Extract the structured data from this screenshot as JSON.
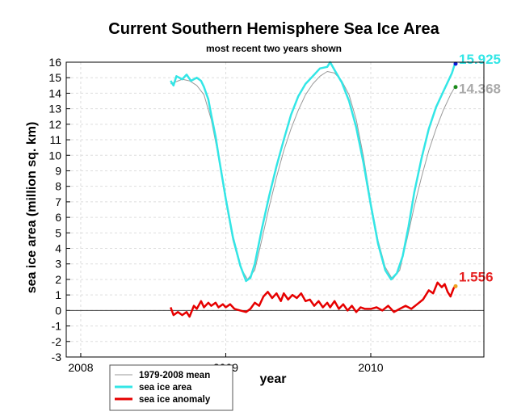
{
  "chart_data": {
    "type": "line",
    "title": "Current Southern Hemisphere Sea Ice Area",
    "subtitle": "most recent two years shown",
    "xlabel": "year",
    "ylabel": "sea ice area (million sq. km)",
    "xlim": [
      2007.9,
      2010.78
    ],
    "ylim": [
      -3,
      16
    ],
    "xticks": [
      2008,
      2009,
      2010
    ],
    "yticks": [
      -3,
      -2,
      -1,
      0,
      1,
      2,
      3,
      4,
      5,
      6,
      7,
      8,
      9,
      10,
      11,
      12,
      13,
      14,
      15,
      16
    ],
    "grid": true,
    "legend_position": "bottom-left",
    "series": [
      {
        "name": "1979-2008 mean",
        "color": "#999999",
        "points": [
          [
            2008.62,
            14.6
          ],
          [
            2008.7,
            14.9
          ],
          [
            2008.75,
            14.8
          ],
          [
            2008.8,
            14.5
          ],
          [
            2008.85,
            13.9
          ],
          [
            2008.9,
            12.3
          ],
          [
            2008.95,
            9.9
          ],
          [
            2009.0,
            7.0
          ],
          [
            2009.05,
            4.5
          ],
          [
            2009.1,
            2.8
          ],
          [
            2009.15,
            2.0
          ],
          [
            2009.2,
            2.6
          ],
          [
            2009.25,
            4.6
          ],
          [
            2009.3,
            6.7
          ],
          [
            2009.35,
            8.6
          ],
          [
            2009.4,
            10.3
          ],
          [
            2009.45,
            11.7
          ],
          [
            2009.5,
            12.9
          ],
          [
            2009.55,
            13.9
          ],
          [
            2009.6,
            14.6
          ],
          [
            2009.65,
            15.1
          ],
          [
            2009.7,
            15.4
          ],
          [
            2009.75,
            15.3
          ],
          [
            2009.8,
            14.8
          ],
          [
            2009.85,
            13.9
          ],
          [
            2009.9,
            12.3
          ],
          [
            2009.95,
            9.9
          ],
          [
            2010.0,
            7.0
          ],
          [
            2010.05,
            4.5
          ],
          [
            2010.1,
            2.8
          ],
          [
            2010.15,
            2.0
          ],
          [
            2010.2,
            2.6
          ],
          [
            2010.25,
            4.6
          ],
          [
            2010.3,
            6.7
          ],
          [
            2010.35,
            8.6
          ],
          [
            2010.4,
            10.3
          ],
          [
            2010.45,
            11.7
          ],
          [
            2010.5,
            12.9
          ],
          [
            2010.55,
            13.9
          ],
          [
            2010.58,
            14.4
          ]
        ]
      },
      {
        "name": "sea ice area",
        "color": "#33e6e6",
        "points": [
          [
            2008.62,
            14.8
          ],
          [
            2008.64,
            14.5
          ],
          [
            2008.66,
            15.1
          ],
          [
            2008.7,
            14.9
          ],
          [
            2008.73,
            15.2
          ],
          [
            2008.76,
            14.8
          ],
          [
            2008.8,
            15.0
          ],
          [
            2008.83,
            14.8
          ],
          [
            2008.85,
            14.4
          ],
          [
            2008.88,
            13.6
          ],
          [
            2008.9,
            12.6
          ],
          [
            2008.93,
            11.2
          ],
          [
            2008.95,
            10.0
          ],
          [
            2009.0,
            7.2
          ],
          [
            2009.05,
            4.7
          ],
          [
            2009.1,
            2.9
          ],
          [
            2009.14,
            1.9
          ],
          [
            2009.17,
            2.1
          ],
          [
            2009.2,
            3.0
          ],
          [
            2009.25,
            5.3
          ],
          [
            2009.3,
            7.4
          ],
          [
            2009.35,
            9.3
          ],
          [
            2009.4,
            11.0
          ],
          [
            2009.45,
            12.6
          ],
          [
            2009.5,
            13.8
          ],
          [
            2009.55,
            14.6
          ],
          [
            2009.6,
            15.1
          ],
          [
            2009.65,
            15.6
          ],
          [
            2009.7,
            15.7
          ],
          [
            2009.72,
            16.0
          ],
          [
            2009.75,
            15.5
          ],
          [
            2009.8,
            14.7
          ],
          [
            2009.85,
            13.5
          ],
          [
            2009.9,
            11.8
          ],
          [
            2009.95,
            9.5
          ],
          [
            2010.0,
            6.8
          ],
          [
            2010.05,
            4.3
          ],
          [
            2010.1,
            2.6
          ],
          [
            2010.14,
            2.0
          ],
          [
            2010.18,
            2.4
          ],
          [
            2010.22,
            3.5
          ],
          [
            2010.26,
            5.4
          ],
          [
            2010.3,
            7.6
          ],
          [
            2010.35,
            9.8
          ],
          [
            2010.4,
            11.7
          ],
          [
            2010.45,
            13.1
          ],
          [
            2010.5,
            14.1
          ],
          [
            2010.54,
            14.9
          ],
          [
            2010.56,
            15.3
          ],
          [
            2010.58,
            15.9
          ]
        ]
      },
      {
        "name": "sea ice anomaly",
        "color": "#e60000",
        "points": [
          [
            2008.62,
            0.2
          ],
          [
            2008.64,
            -0.3
          ],
          [
            2008.67,
            -0.1
          ],
          [
            2008.7,
            -0.3
          ],
          [
            2008.73,
            -0.1
          ],
          [
            2008.75,
            -0.4
          ],
          [
            2008.78,
            0.3
          ],
          [
            2008.8,
            0.1
          ],
          [
            2008.83,
            0.6
          ],
          [
            2008.85,
            0.2
          ],
          [
            2008.88,
            0.5
          ],
          [
            2008.9,
            0.3
          ],
          [
            2008.93,
            0.5
          ],
          [
            2008.95,
            0.2
          ],
          [
            2008.98,
            0.4
          ],
          [
            2009.0,
            0.2
          ],
          [
            2009.03,
            0.4
          ],
          [
            2009.06,
            0.1
          ],
          [
            2009.1,
            0.0
          ],
          [
            2009.14,
            -0.1
          ],
          [
            2009.17,
            0.1
          ],
          [
            2009.2,
            0.5
          ],
          [
            2009.23,
            0.3
          ],
          [
            2009.26,
            0.9
          ],
          [
            2009.29,
            1.2
          ],
          [
            2009.32,
            0.8
          ],
          [
            2009.35,
            1.1
          ],
          [
            2009.38,
            0.6
          ],
          [
            2009.4,
            1.1
          ],
          [
            2009.43,
            0.7
          ],
          [
            2009.46,
            1.0
          ],
          [
            2009.49,
            0.8
          ],
          [
            2009.52,
            1.1
          ],
          [
            2009.55,
            0.6
          ],
          [
            2009.58,
            0.7
          ],
          [
            2009.61,
            0.3
          ],
          [
            2009.64,
            0.6
          ],
          [
            2009.67,
            0.2
          ],
          [
            2009.7,
            0.5
          ],
          [
            2009.72,
            0.2
          ],
          [
            2009.75,
            0.6
          ],
          [
            2009.78,
            0.1
          ],
          [
            2009.81,
            0.4
          ],
          [
            2009.84,
            0.0
          ],
          [
            2009.87,
            0.3
          ],
          [
            2009.9,
            -0.1
          ],
          [
            2009.93,
            0.2
          ],
          [
            2009.96,
            0.1
          ],
          [
            2010.0,
            0.1
          ],
          [
            2010.04,
            0.2
          ],
          [
            2010.08,
            0.0
          ],
          [
            2010.12,
            0.3
          ],
          [
            2010.16,
            -0.1
          ],
          [
            2010.2,
            0.1
          ],
          [
            2010.24,
            0.3
          ],
          [
            2010.28,
            0.1
          ],
          [
            2010.32,
            0.4
          ],
          [
            2010.36,
            0.7
          ],
          [
            2010.4,
            1.3
          ],
          [
            2010.43,
            1.1
          ],
          [
            2010.46,
            1.8
          ],
          [
            2010.49,
            1.5
          ],
          [
            2010.51,
            1.7
          ],
          [
            2010.53,
            1.2
          ],
          [
            2010.55,
            0.9
          ],
          [
            2010.57,
            1.4
          ],
          [
            2010.58,
            1.56
          ]
        ]
      }
    ],
    "end_markers": [
      {
        "label": "15.925",
        "x": 2010.585,
        "y": 15.9,
        "color": "#33e6e6",
        "dot_color": "#0a1ad6"
      },
      {
        "label": "14.368",
        "x": 2010.585,
        "y": 14.4,
        "color": "#aaaaaa",
        "dot_color": "#1a8a1a"
      },
      {
        "label": "1.556",
        "x": 2010.585,
        "y": 1.56,
        "color": "#e62020",
        "dot_color": "#f0a020"
      }
    ]
  }
}
